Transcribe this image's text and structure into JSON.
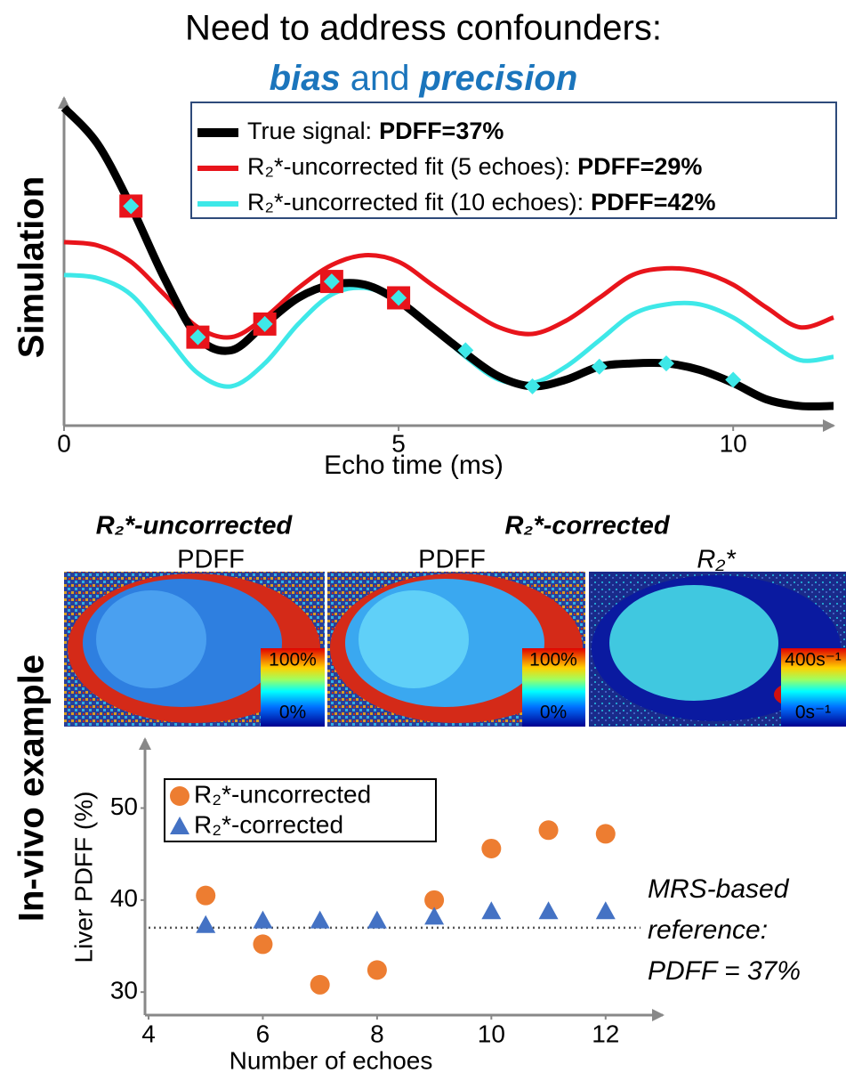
{
  "title": {
    "line1": "Need to address confounders:",
    "line2": [
      "bias",
      "and",
      "precision"
    ]
  },
  "section_labels": [
    "Simulation",
    "In-vivo example"
  ],
  "chart_data": [
    {
      "type": "line",
      "x_label": "Echo time (ms)",
      "section": "Simulation",
      "x": [
        0,
        0.5,
        1,
        1.5,
        2,
        2.5,
        3,
        3.5,
        4,
        4.5,
        5,
        5.5,
        6,
        6.5,
        7,
        7.5,
        8,
        8.5,
        9,
        9.5,
        10,
        10.5,
        11,
        11.5
      ],
      "xlim": [
        0,
        11.5
      ],
      "xticks": [
        0,
        5,
        10
      ],
      "ylim": [
        0,
        1
      ],
      "series": [
        {
          "name": "True signal:",
          "pdff_label": "PDFF=37%",
          "color": "#000000",
          "width": 9,
          "values": [
            0.97,
            0.86,
            0.67,
            0.45,
            0.27,
            0.23,
            0.31,
            0.39,
            0.43,
            0.43,
            0.38,
            0.3,
            0.22,
            0.15,
            0.12,
            0.14,
            0.18,
            0.19,
            0.19,
            0.17,
            0.13,
            0.08,
            0.06,
            0.06
          ]
        },
        {
          "name": "R₂*-uncorrected fit (5 echoes):",
          "pdff_label": "PDFF=29%",
          "color": "#e8141b",
          "width": 5,
          "values": [
            0.56,
            0.55,
            0.5,
            0.4,
            0.3,
            0.27,
            0.33,
            0.42,
            0.49,
            0.52,
            0.5,
            0.43,
            0.36,
            0.3,
            0.28,
            0.32,
            0.39,
            0.46,
            0.48,
            0.47,
            0.43,
            0.36,
            0.3,
            0.33
          ]
        },
        {
          "name": "R₂*-uncorrected fit (10 echoes):",
          "pdff_label": "PDFF=42%",
          "color": "#3ee8e8",
          "width": 5,
          "values": [
            0.46,
            0.45,
            0.4,
            0.28,
            0.16,
            0.12,
            0.19,
            0.31,
            0.4,
            0.42,
            0.38,
            0.3,
            0.21,
            0.14,
            0.13,
            0.18,
            0.26,
            0.34,
            0.37,
            0.37,
            0.33,
            0.26,
            0.2,
            0.21
          ]
        }
      ],
      "echo_samples": [
        {
          "shape": "square",
          "color": "#e8141b",
          "x": [
            1,
            2,
            3,
            4,
            5
          ],
          "values": [
            0.67,
            0.27,
            0.31,
            0.44,
            0.39
          ]
        },
        {
          "shape": "diamond",
          "color": "#3ee8e8",
          "x": [
            1,
            2,
            3,
            4,
            5,
            6,
            7,
            8,
            9,
            10
          ],
          "values": [
            0.67,
            0.27,
            0.31,
            0.44,
            0.39,
            0.23,
            0.12,
            0.18,
            0.19,
            0.14
          ]
        }
      ]
    },
    {
      "type": "scatter",
      "x_label": "Number of echoes",
      "y_label": "Liver PDFF (%)",
      "xlim": [
        4,
        13
      ],
      "xticks": [
        4,
        6,
        8,
        10,
        12
      ],
      "ylim": [
        27.5,
        57.5
      ],
      "yticks": [
        30,
        40,
        50
      ],
      "series": [
        {
          "name": "R₂*-uncorrected",
          "marker": "circle",
          "color": "#ed7d31",
          "x": [
            5,
            6,
            7,
            8,
            9,
            10,
            11,
            12
          ],
          "values": [
            40.5,
            35.2,
            30.8,
            32.4,
            40.0,
            45.6,
            47.6,
            47.2
          ]
        },
        {
          "name": "R₂*-corrected",
          "marker": "triangle",
          "color": "#4472c4",
          "x": [
            5,
            6,
            7,
            8,
            9,
            10,
            11,
            12
          ],
          "values": [
            37.3,
            37.8,
            37.8,
            37.8,
            38.2,
            38.8,
            38.8,
            38.8
          ]
        }
      ],
      "reference": {
        "value": 37,
        "label": [
          "MRS-based",
          "reference:",
          "PDFF = 37%"
        ]
      }
    }
  ],
  "in_vivo": {
    "groups": [
      "R₂*-uncorrected",
      "R₂*-corrected"
    ],
    "panels": [
      {
        "label": "PDFF",
        "colorbar_max": "100%",
        "colorbar_min": "0%"
      },
      {
        "label": "PDFF",
        "colorbar_max": "100%",
        "colorbar_min": "0%"
      },
      {
        "label": "R₂*",
        "colorbar_max": "400s⁻¹",
        "colorbar_min": "0s⁻¹"
      }
    ]
  }
}
